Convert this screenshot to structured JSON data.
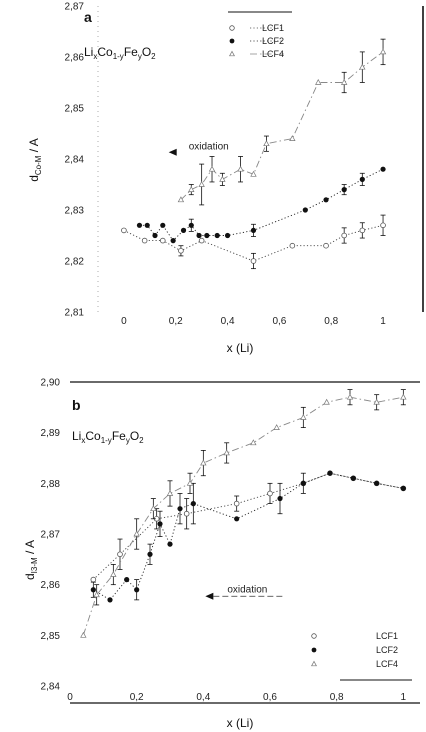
{
  "chart_data": [
    {
      "type": "scatter",
      "panel_label": "a",
      "formula": {
        "base": "Li",
        "s1": "x",
        "mid": "Co",
        "s2": "1-y",
        "mid2": "Fe",
        "s3": "y",
        "end": "O",
        "s4": "2"
      },
      "xlabel": "x (Li)",
      "ylabel": {
        "main": "d",
        "sub": "Co-M",
        "unit": " / A"
      },
      "xlim": [
        -0.1,
        1.05
      ],
      "ylim": [
        2.81,
        2.87
      ],
      "xticks": [
        0,
        0.2,
        0.4,
        0.6,
        0.8,
        1
      ],
      "xtick_labels": [
        "0",
        "0,2",
        "0,4",
        "0,6",
        "0,8",
        "1"
      ],
      "yticks": [
        2.81,
        2.82,
        2.83,
        2.84,
        2.85,
        2.86,
        2.87
      ],
      "ytick_labels": [
        "2,81",
        "2,82",
        "2,83",
        "2,84",
        "2,85",
        "2,86",
        "2,87"
      ],
      "legend_position": "top-right",
      "annotation": {
        "text": "oxidation",
        "x": 0.25,
        "y": 2.8425,
        "arrow": "left"
      },
      "series": [
        {
          "name": "LCF1",
          "marker": "open-circle",
          "line": "dotted",
          "x": [
            0,
            0.08,
            0.15,
            0.22,
            0.3,
            0.5,
            0.65,
            0.78,
            0.85,
            0.92,
            1.0
          ],
          "y": [
            2.826,
            2.824,
            2.824,
            2.822,
            2.824,
            2.82,
            2.823,
            2.823,
            2.825,
            2.826,
            2.827
          ],
          "err": [
            0,
            0,
            0,
            0.001,
            0,
            0.0015,
            0,
            0,
            0.0015,
            0.0015,
            0.002
          ]
        },
        {
          "name": "LCF2",
          "marker": "filled-circle",
          "line": "dotted",
          "x": [
            0.06,
            0.09,
            0.12,
            0.15,
            0.19,
            0.23,
            0.26,
            0.29,
            0.32,
            0.36,
            0.4,
            0.5,
            0.7,
            0.78,
            0.85,
            0.92,
            1.0
          ],
          "y": [
            2.827,
            2.827,
            2.825,
            2.827,
            2.824,
            2.826,
            2.827,
            2.825,
            2.825,
            2.825,
            2.825,
            2.826,
            2.83,
            2.832,
            2.834,
            2.836,
            2.838
          ],
          "err": [
            0,
            0,
            0,
            0,
            0,
            0,
            0.0012,
            0,
            0,
            0,
            0,
            0.0012,
            0,
            0,
            0.001,
            0.0012,
            0
          ]
        },
        {
          "name": "LCF4",
          "marker": "open-triangle",
          "line": "dash-dot",
          "x": [
            0.22,
            0.26,
            0.3,
            0.34,
            0.38,
            0.45,
            0.5,
            0.55,
            0.65,
            0.75,
            0.85,
            0.92,
            1.0
          ],
          "y": [
            2.832,
            2.834,
            2.835,
            2.838,
            2.836,
            2.838,
            2.837,
            2.843,
            2.844,
            2.855,
            2.855,
            2.858,
            2.861
          ],
          "err": [
            0,
            0.001,
            0.004,
            0.0025,
            0.0012,
            0.0025,
            0,
            0.0015,
            0,
            0,
            0.002,
            0.003,
            0.0025
          ]
        }
      ]
    },
    {
      "type": "scatter",
      "panel_label": "b",
      "formula": {
        "base": "Li",
        "s1": "x",
        "mid": "Co",
        "s2": "1-y",
        "mid2": "Fe",
        "s3": "y",
        "end": "O",
        "s4": "2"
      },
      "xlabel": "x (Li)",
      "ylabel": {
        "main": "d",
        "sub": "I3-M",
        "unit": " / A"
      },
      "xlim": [
        0,
        1.05
      ],
      "ylim": [
        2.84,
        2.9
      ],
      "xticks": [
        0,
        0.2,
        0.4,
        0.6,
        0.8,
        1
      ],
      "xtick_labels": [
        "0",
        "0,2",
        "0,4",
        "0,6",
        "0,8",
        "1"
      ],
      "yticks": [
        2.84,
        2.85,
        2.86,
        2.87,
        2.88,
        2.89,
        2.9
      ],
      "ytick_labels": [
        "2,84",
        "2,85",
        "2,86",
        "2,87",
        "2,88",
        "2,89",
        "2,90"
      ],
      "legend_position": "bottom-right",
      "annotation": {
        "text": "oxidation",
        "x": 0.58,
        "y": 2.8585,
        "arrow": "left"
      },
      "series": [
        {
          "name": "LCF1",
          "marker": "open-circle",
          "line": "dotted",
          "x": [
            0.07,
            0.15,
            0.26,
            0.35,
            0.5,
            0.6,
            0.7,
            0.78,
            0.85,
            0.92,
            1.0
          ],
          "y": [
            2.861,
            2.866,
            2.873,
            2.874,
            2.876,
            2.878,
            2.88,
            2.882,
            2.881,
            2.88,
            2.879
          ],
          "err": [
            0,
            0.003,
            0.002,
            0.003,
            0.0015,
            0.002,
            0,
            0,
            0,
            0,
            0
          ]
        },
        {
          "name": "LCF2",
          "marker": "filled-circle",
          "line": "dotted",
          "x": [
            0.07,
            0.12,
            0.17,
            0.2,
            0.24,
            0.27,
            0.3,
            0.33,
            0.37,
            0.5,
            0.63,
            0.7,
            0.78,
            0.85,
            0.92,
            1.0
          ],
          "y": [
            2.859,
            2.857,
            2.861,
            2.859,
            2.866,
            2.872,
            2.868,
            2.875,
            2.876,
            2.873,
            2.877,
            2.88,
            2.882,
            2.881,
            2.88,
            2.879
          ],
          "err": [
            0.0015,
            0,
            0,
            0.002,
            0.002,
            0.0025,
            0,
            0.003,
            0.004,
            0,
            0.003,
            0.002,
            0,
            0,
            0,
            0
          ]
        },
        {
          "name": "LCF4",
          "marker": "open-triangle",
          "line": "dash-dot",
          "x": [
            0.04,
            0.08,
            0.13,
            0.2,
            0.25,
            0.3,
            0.36,
            0.4,
            0.47,
            0.55,
            0.62,
            0.7,
            0.77,
            0.84,
            0.92,
            1.0
          ],
          "y": [
            2.85,
            2.858,
            2.862,
            2.87,
            2.875,
            2.878,
            2.88,
            2.884,
            2.886,
            2.888,
            2.891,
            2.893,
            2.896,
            2.897,
            2.896,
            2.897
          ],
          "err": [
            0,
            0.002,
            0.002,
            0.003,
            0.002,
            0.0025,
            0.002,
            0.0025,
            0.002,
            0,
            0,
            0.002,
            0,
            0.0015,
            0.0015,
            0.0015
          ]
        }
      ]
    }
  ]
}
